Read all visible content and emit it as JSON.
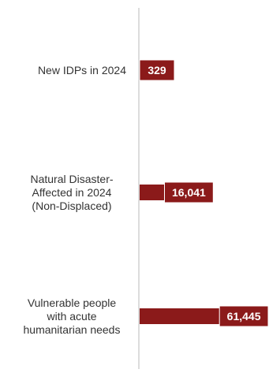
{
  "chart_data": {
    "type": "bar",
    "orientation": "horizontal",
    "categories": [
      [
        "New IDPs in 2024"
      ],
      [
        "Natural Disaster-",
        "Affected in 2024",
        "(Non-Displaced)"
      ],
      [
        "Vulnerable people",
        "with acute",
        "humanitarian needs"
      ]
    ],
    "values": [
      329,
      16041,
      61445
    ],
    "value_labels": [
      "329",
      "16,041",
      "61,445"
    ],
    "bar_color": "#8b1a1a",
    "axis_color": "#d0d0d0",
    "label_color": "#333333",
    "value_label_color": "#ffffff",
    "xlim": [
      0,
      61445
    ],
    "grid": false,
    "legend": "none"
  }
}
